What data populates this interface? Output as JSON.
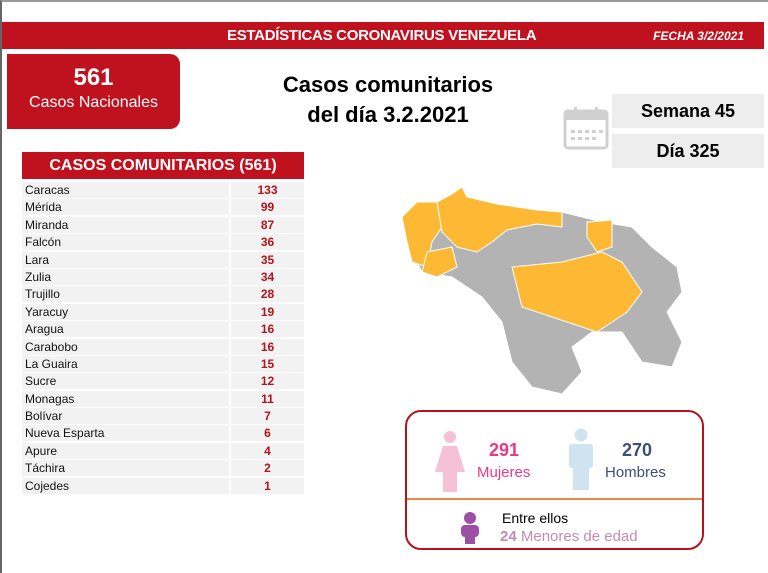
{
  "header": {
    "title": "ESTADÍSTICAS CORONAVIRUS VENEZUELA",
    "date": "FECHA 3/2/2021"
  },
  "national": {
    "count": "561",
    "label": "Casos Nacionales"
  },
  "title": {
    "line1": "Casos comunitarios",
    "line2": "del día 3.2.2021"
  },
  "calendar": {
    "icon": "calendar-icon",
    "week": "Semana 45",
    "day": "Día 325"
  },
  "table": {
    "header": "CASOS COMUNITARIOS (561)",
    "rows": [
      {
        "name": "Caracas",
        "value": "133"
      },
      {
        "name": "Mérida",
        "value": "99"
      },
      {
        "name": "Miranda",
        "value": "87"
      },
      {
        "name": "Falcón",
        "value": "36"
      },
      {
        "name": "Lara",
        "value": "35"
      },
      {
        "name": "Zulia",
        "value": "34"
      },
      {
        "name": "Trujillo",
        "value": "28"
      },
      {
        "name": "Yaracuy",
        "value": "19"
      },
      {
        "name": "Aragua",
        "value": "16"
      },
      {
        "name": "Carabobo",
        "value": "16"
      },
      {
        "name": "La Guaira",
        "value": "15"
      },
      {
        "name": "Sucre",
        "value": "12"
      },
      {
        "name": "Monagas",
        "value": "11"
      },
      {
        "name": "Bolívar",
        "value": "7"
      },
      {
        "name": "Nueva Esparta",
        "value": "6"
      },
      {
        "name": "Apure",
        "value": "4"
      },
      {
        "name": "Táchira",
        "value": "2"
      },
      {
        "name": "Cojedes",
        "value": "1"
      }
    ]
  },
  "map": {
    "highlight_color": "#fdb933",
    "base_color": "#b3b3b3"
  },
  "gender": {
    "women": {
      "count": "291",
      "label": "Mujeres",
      "color": "#e8388a"
    },
    "men": {
      "count": "270",
      "label": "Hombres",
      "color": "#3a4f7a"
    },
    "minors": {
      "intro": "Entre ellos",
      "count": "24",
      "label": "Menores de edad",
      "color": "#c88ab0"
    }
  }
}
